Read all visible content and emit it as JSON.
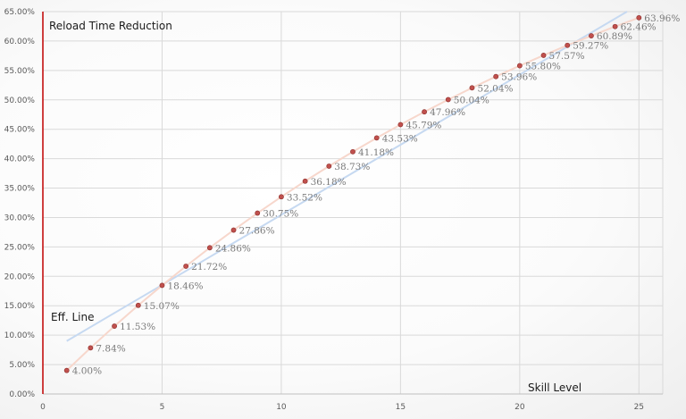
{
  "chart_data": {
    "type": "scatter",
    "title": "Reload Time Reduction",
    "xlabel": "Skill Level",
    "ylabel": "",
    "xlim": [
      0,
      26
    ],
    "ylim": [
      0,
      65
    ],
    "x_ticks": [
      0,
      5,
      10,
      15,
      20,
      25
    ],
    "y_ticks": [
      0,
      5,
      10,
      15,
      20,
      25,
      30,
      35,
      40,
      45,
      50,
      55,
      60,
      65
    ],
    "x_tick_labels": [
      "0",
      "5",
      "10",
      "15",
      "20",
      "25"
    ],
    "y_tick_labels": [
      "0.00%",
      "5.00%",
      "10.00%",
      "15.00%",
      "20.00%",
      "25.00%",
      "30.00%",
      "35.00%",
      "40.00%",
      "45.00%",
      "50.00%",
      "55.00%",
      "60.00%",
      "65.00%"
    ],
    "grid": true,
    "series": [
      {
        "x": [
          1,
          2,
          3,
          4,
          5,
          6,
          7,
          8,
          9,
          10,
          11,
          12,
          13,
          14,
          15,
          16,
          17,
          18,
          19,
          20,
          21,
          22,
          23,
          24,
          25
        ],
        "y": [
          4.0,
          7.84,
          11.53,
          15.07,
          18.46,
          21.72,
          24.86,
          27.86,
          30.75,
          33.52,
          36.18,
          38.73,
          41.18,
          43.53,
          45.79,
          47.96,
          50.04,
          52.04,
          53.96,
          55.8,
          57.57,
          59.27,
          60.89,
          62.46,
          63.96
        ],
        "labels": [
          "4.00%",
          "7.84%",
          "11.53%",
          "15.07%",
          "18.46%",
          "21.72%",
          "24.86%",
          "27.86%",
          "30.75%",
          "33.52%",
          "36.18%",
          "38.73%",
          "41.18%",
          "43.53%",
          "45.79%",
          "47.96%",
          "50.04%",
          "52.04%",
          "53.96%",
          "55.80%",
          "57.57%",
          "59.27%",
          "60.89%",
          "62.46%",
          "63.96%"
        ],
        "color": "#c0504d"
      }
    ],
    "eff_line": {
      "label": "Eff. Line",
      "x": [
        1,
        24.5
      ],
      "y": [
        9,
        65
      ],
      "color": "#c6d9f1"
    },
    "connector_color": "#f7d7cc",
    "axis_color": "#c00000"
  }
}
